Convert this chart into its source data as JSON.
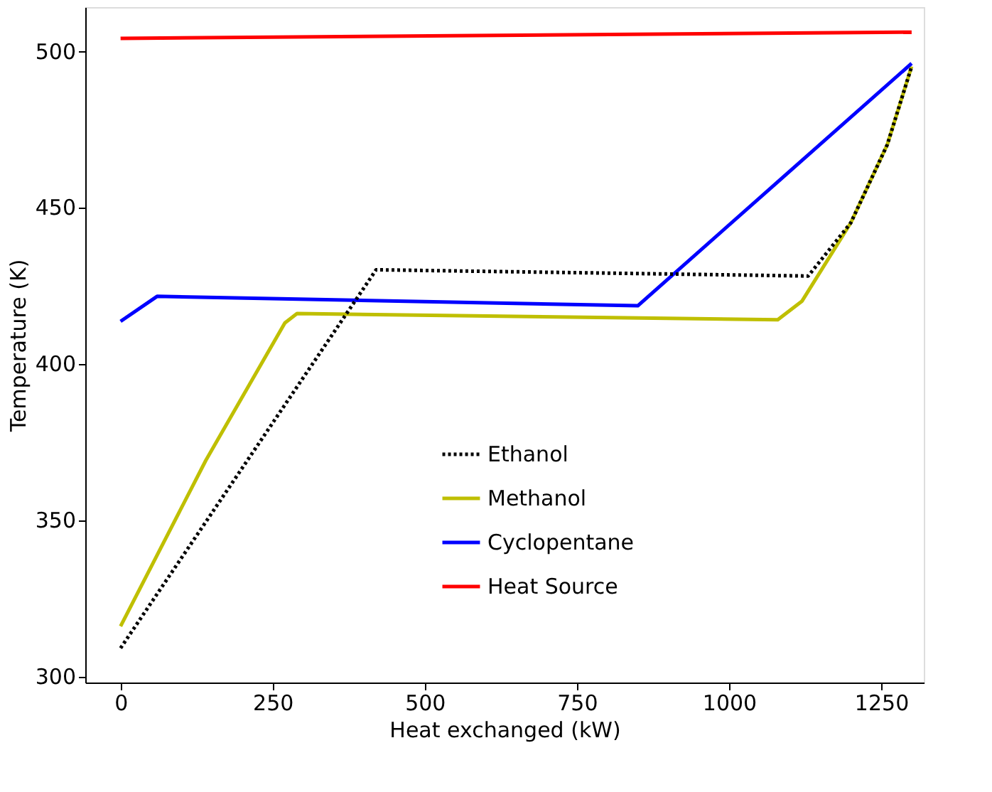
{
  "chart_data": {
    "type": "line",
    "xlabel": "Heat exchanged (kW)",
    "ylabel": "Temperature (K)",
    "xlim": [
      -58,
      1320
    ],
    "ylim": [
      298,
      514
    ],
    "xticks": [
      0,
      250,
      500,
      750,
      1000,
      1250
    ],
    "yticks": [
      300,
      350,
      400,
      450,
      500
    ],
    "grid": false,
    "legend": "bottom",
    "series": [
      {
        "name": "Ethanol",
        "color": "#000000",
        "line_style": "dotted",
        "x": [
          0,
          420,
          1130,
          1200,
          1260,
          1300
        ],
        "values": [
          309,
          430,
          428,
          445,
          470,
          495
        ]
      },
      {
        "name": "Methanol",
        "color": "#bfbf00",
        "line_style": "solid",
        "x": [
          0,
          140,
          270,
          290,
          1080,
          1120,
          1200,
          1260,
          1300
        ],
        "values": [
          316,
          369,
          413,
          416,
          414,
          420,
          445,
          470,
          495
        ]
      },
      {
        "name": "Cyclopentane",
        "color": "#0000ff",
        "line_style": "solid",
        "x": [
          0,
          60,
          850,
          1300
        ],
        "values": [
          413.5,
          421.5,
          418.5,
          496
        ]
      },
      {
        "name": "Heat Source",
        "color": "#ff0000",
        "line_style": "solid",
        "x": [
          0,
          1300
        ],
        "values": [
          504,
          506
        ]
      }
    ]
  }
}
